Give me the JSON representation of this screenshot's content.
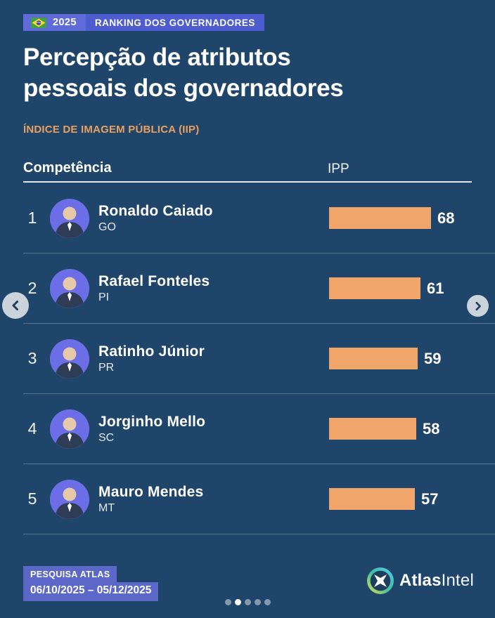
{
  "page_bg": "#1f466a",
  "header": {
    "flag_icon": "brazil-flag-icon",
    "badge_year": "2025",
    "badge_label": "RANKING DOS GOVERNADORES",
    "title_line1": "Percepção de atributos",
    "title_line2": "pessoais dos governadores",
    "subtitle": "ÍNDICE DE IMAGEM PÚBLICA (IIP)"
  },
  "table": {
    "attribute_header": "Competência",
    "value_header": "IPP",
    "rows": [
      {
        "rank": "1",
        "name": "Ronaldo Caiado",
        "state": "GO",
        "value": 68
      },
      {
        "rank": "2",
        "name": "Rafael Fonteles",
        "state": "PI",
        "value": 61
      },
      {
        "rank": "3",
        "name": "Ratinho Júnior",
        "state": "PR",
        "value": 59
      },
      {
        "rank": "4",
        "name": "Jorginho Mello",
        "state": "SC",
        "value": 58
      },
      {
        "rank": "5",
        "name": "Mauro Mendes",
        "state": "MT",
        "value": 57
      }
    ]
  },
  "chart_data": {
    "type": "bar",
    "orientation": "horizontal",
    "title": "Percepção de atributos pessoais dos governadores",
    "subtitle": "ÍNDICE DE IMAGEM PÚBLICA (IIP)",
    "attribute": "Competência",
    "value_label": "IPP",
    "categories": [
      "Ronaldo Caiado (GO)",
      "Rafael Fonteles (PI)",
      "Ratinho Júnior (PR)",
      "Jorginho Mello (SC)",
      "Mauro Mendes (MT)"
    ],
    "values": [
      68,
      61,
      59,
      58,
      57
    ],
    "bar_color": "#f0a66a",
    "xlim": [
      0,
      68
    ],
    "grid": false,
    "legend": false
  },
  "nav": {
    "prev": "chevron-left",
    "next": "chevron-right"
  },
  "footer": {
    "survey_label": "PESQUISA ATLAS",
    "survey_period": "06/10/2025 – 05/12/2025",
    "pagination": {
      "count": 5,
      "active_index": 1
    },
    "brand_bold": "Atlas",
    "brand_light": "Intel"
  },
  "colors": {
    "accent_orange": "#f0a66a",
    "badge_blue_left": "#5f6bd9",
    "badge_blue_right": "#4d5cce",
    "footer_badge_blue": "#5b68c7",
    "avatar_bg": "#6b6ee6",
    "background": "#1f466a"
  }
}
